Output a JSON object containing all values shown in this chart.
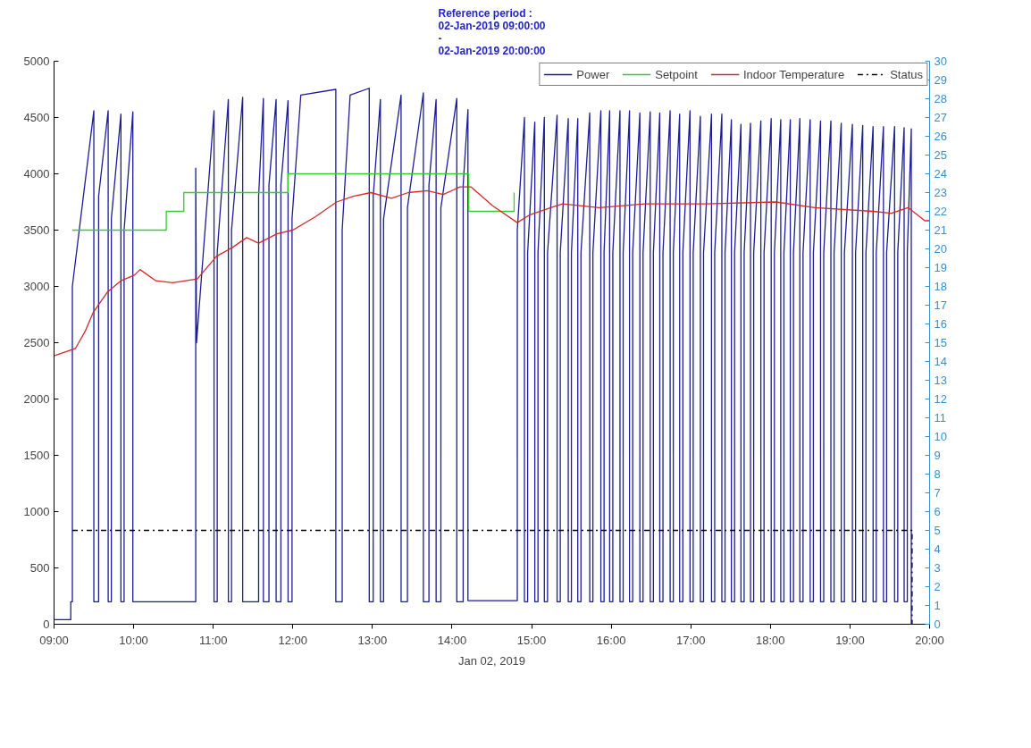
{
  "chart_data": {
    "type": "line",
    "title": "Reference period :\n02-Jan-2019 09:00:00\n-\n02-Jan-2019 20:00:00",
    "xlabel": "Jan 02, 2019",
    "xlim": [
      9,
      20
    ],
    "xticks": [
      {
        "value": 9,
        "label": "09:00"
      },
      {
        "value": 10,
        "label": "10:00"
      },
      {
        "value": 11,
        "label": "11:00"
      },
      {
        "value": 12,
        "label": "12:00"
      },
      {
        "value": 13,
        "label": "13:00"
      },
      {
        "value": 14,
        "label": "14:00"
      },
      {
        "value": 15,
        "label": "15:00"
      },
      {
        "value": 16,
        "label": "16:00"
      },
      {
        "value": 17,
        "label": "17:00"
      },
      {
        "value": 18,
        "label": "18:00"
      },
      {
        "value": 19,
        "label": "19:00"
      },
      {
        "value": 20,
        "label": "20:00"
      }
    ],
    "ylim": [
      0,
      5000
    ],
    "yticks": [
      0,
      500,
      1000,
      1500,
      2000,
      2500,
      3000,
      3500,
      4000,
      4500,
      5000
    ],
    "y2lim": [
      0,
      30
    ],
    "y2ticks": [
      0,
      1,
      2,
      3,
      4,
      5,
      6,
      7,
      8,
      9,
      10,
      11,
      12,
      13,
      14,
      15,
      16,
      17,
      18,
      19,
      20,
      21,
      22,
      23,
      24,
      25,
      26,
      27,
      28,
      29,
      30
    ],
    "grid": false,
    "legend": "top right",
    "marker": "none",
    "series": [
      {
        "name": "Power",
        "color": "#1c1c96",
        "type": "line",
        "line_style": "solid",
        "x": [
          9.0,
          9.21,
          9.21,
          9.23,
          9.23,
          9.5,
          9.5,
          9.56,
          9.56,
          9.68,
          9.68,
          9.72,
          9.72,
          9.84,
          9.84,
          9.88,
          9.88,
          9.99,
          9.99,
          10.78,
          10.78,
          10.79,
          11.01,
          11.01,
          11.05,
          11.05,
          11.19,
          11.19,
          11.23,
          11.23,
          11.37,
          11.37,
          11.57,
          11.57,
          11.63,
          11.63,
          11.7,
          11.7,
          11.79,
          11.79,
          11.85,
          11.85,
          11.94,
          11.94,
          11.99,
          11.99,
          12.1,
          12.54,
          12.54,
          12.62,
          12.62,
          12.72,
          12.96,
          12.96,
          13.01,
          13.01,
          13.1,
          13.1,
          13.14,
          13.14,
          13.36,
          13.36,
          13.44,
          13.44,
          13.64,
          13.64,
          13.71,
          13.71,
          13.8,
          13.8,
          13.86,
          13.86,
          14.06,
          14.06,
          14.14,
          14.14,
          14.2,
          14.2,
          14.82,
          14.82,
          14.91,
          14.91,
          14.95,
          14.95,
          15.04,
          15.04,
          15.08,
          15.08,
          15.16,
          15.16,
          15.2,
          15.2,
          15.32,
          15.32,
          15.36,
          15.36,
          15.46,
          15.46,
          15.5,
          15.5,
          15.58,
          15.58,
          15.62,
          15.62,
          15.73,
          15.73,
          15.77,
          15.77,
          15.87,
          15.87,
          15.91,
          15.91,
          15.98,
          15.98,
          16.02,
          16.02,
          16.11,
          16.11,
          16.15,
          16.15,
          16.23,
          16.23,
          16.27,
          16.27,
          16.36,
          16.36,
          16.4,
          16.4,
          16.49,
          16.49,
          16.53,
          16.53,
          16.61,
          16.61,
          16.65,
          16.65,
          16.74,
          16.74,
          16.78,
          16.78,
          16.86,
          16.86,
          16.9,
          16.9,
          16.99,
          16.99,
          17.03,
          17.03,
          17.12,
          17.12,
          17.16,
          17.16,
          17.26,
          17.26,
          17.3,
          17.3,
          17.39,
          17.39,
          17.43,
          17.43,
          17.51,
          17.51,
          17.55,
          17.55,
          17.63,
          17.63,
          17.67,
          17.67,
          17.75,
          17.75,
          17.79,
          17.79,
          17.88,
          17.88,
          17.92,
          17.92,
          18.01,
          18.01,
          18.05,
          18.05,
          18.13,
          18.13,
          18.17,
          18.17,
          18.25,
          18.25,
          18.29,
          18.29,
          18.37,
          18.37,
          18.41,
          18.41,
          18.5,
          18.5,
          18.54,
          18.54,
          18.63,
          18.63,
          18.67,
          18.67,
          18.76,
          18.76,
          18.8,
          18.8,
          18.89,
          18.89,
          18.93,
          18.93,
          19.03,
          19.03,
          19.07,
          19.07,
          19.16,
          19.16,
          19.2,
          19.2,
          19.29,
          19.29,
          19.33,
          19.33,
          19.42,
          19.42,
          19.46,
          19.46,
          19.56,
          19.56,
          19.6,
          19.6,
          19.68,
          19.68,
          19.72,
          19.72,
          19.77,
          19.77
        ],
        "values": [
          40,
          40,
          200,
          200,
          3000,
          4560,
          200,
          200,
          3800,
          4560,
          200,
          200,
          3600,
          4530,
          200,
          200,
          3500,
          4550,
          200,
          200,
          4050,
          2500,
          4560,
          200,
          200,
          3300,
          4660,
          200,
          200,
          3500,
          4680,
          200,
          200,
          3800,
          4670,
          200,
          200,
          3900,
          4660,
          200,
          200,
          3900,
          4650,
          200,
          200,
          3600,
          4700,
          4750,
          200,
          200,
          3500,
          4700,
          4760,
          200,
          200,
          3800,
          4660,
          200,
          200,
          3600,
          4700,
          200,
          200,
          3700,
          4720,
          200,
          200,
          3900,
          4660,
          200,
          200,
          3700,
          4670,
          200,
          200,
          3900,
          4570,
          210,
          210,
          3500,
          4500,
          200,
          200,
          3300,
          4460,
          200,
          200,
          3300,
          4500,
          200,
          200,
          3300,
          4520,
          200,
          200,
          3300,
          4490,
          200,
          200,
          3300,
          4490,
          200,
          200,
          3300,
          4540,
          200,
          200,
          3300,
          4560,
          200,
          200,
          3300,
          4560,
          200,
          200,
          3300,
          4560,
          200,
          200,
          3300,
          4560,
          200,
          200,
          3300,
          4540,
          200,
          200,
          3300,
          4550,
          200,
          200,
          3300,
          4540,
          200,
          200,
          3300,
          4560,
          200,
          200,
          3300,
          4530,
          200,
          200,
          3300,
          4560,
          200,
          200,
          3300,
          4510,
          200,
          200,
          3300,
          4530,
          200,
          200,
          3300,
          4530,
          200,
          200,
          3300,
          4480,
          200,
          200,
          3300,
          4440,
          200,
          200,
          3300,
          4450,
          200,
          200,
          3300,
          4470,
          200,
          200,
          3300,
          4490,
          200,
          200,
          3300,
          4480,
          200,
          200,
          3300,
          4480,
          200,
          200,
          3300,
          4490,
          200,
          200,
          3300,
          4480,
          200,
          200,
          3300,
          4470,
          200,
          200,
          3300,
          4470,
          200,
          200,
          3300,
          4450,
          200,
          200,
          3300,
          4440,
          200,
          200,
          3300,
          4430,
          200,
          200,
          3300,
          4420,
          200,
          200,
          3300,
          4420,
          200,
          200,
          3300,
          4420,
          200,
          200,
          3300,
          4410,
          200,
          200,
          3300,
          4400,
          0
        ]
      },
      {
        "name": "Setpoint",
        "color": "#33cc33",
        "type": "step",
        "axis": "y2",
        "line_style": "solid",
        "x": [
          9.23,
          10.41,
          10.63,
          11.94,
          14.21,
          14.78
        ],
        "values": [
          21,
          22,
          23,
          24,
          22,
          23
        ]
      },
      {
        "name": "Indoor Temperature",
        "color": "#d42a2a",
        "type": "line",
        "axis": "y2",
        "line_style": "solid",
        "x": [
          9.0,
          9.27,
          9.39,
          9.49,
          9.67,
          9.84,
          10.01,
          10.08,
          10.28,
          10.49,
          10.8,
          11.04,
          11.25,
          11.42,
          11.57,
          11.8,
          12.0,
          12.28,
          12.55,
          12.76,
          12.98,
          13.24,
          13.45,
          13.69,
          13.89,
          14.1,
          14.24,
          14.51,
          14.82,
          14.97,
          15.24,
          15.39,
          15.85,
          16.42,
          17.19,
          18.07,
          18.56,
          19.29,
          19.52,
          19.73,
          19.94,
          20.0
        ],
        "values": [
          14.3,
          14.7,
          15.6,
          16.6,
          17.7,
          18.3,
          18.6,
          18.9,
          18.3,
          18.2,
          18.4,
          19.6,
          20.1,
          20.6,
          20.3,
          20.8,
          21.0,
          21.7,
          22.5,
          22.8,
          23.0,
          22.7,
          23.0,
          23.1,
          22.9,
          23.3,
          23.3,
          22.3,
          21.4,
          21.8,
          22.2,
          22.4,
          22.2,
          22.4,
          22.4,
          22.5,
          22.2,
          22.0,
          21.9,
          22.2,
          21.5,
          21.5
        ]
      },
      {
        "name": "Status",
        "color": "#000000",
        "type": "line",
        "axis": "y2",
        "line_style": "dashdot",
        "x": [
          9.23,
          19.78,
          19.78
        ],
        "values": [
          5,
          5,
          0
        ]
      }
    ]
  }
}
